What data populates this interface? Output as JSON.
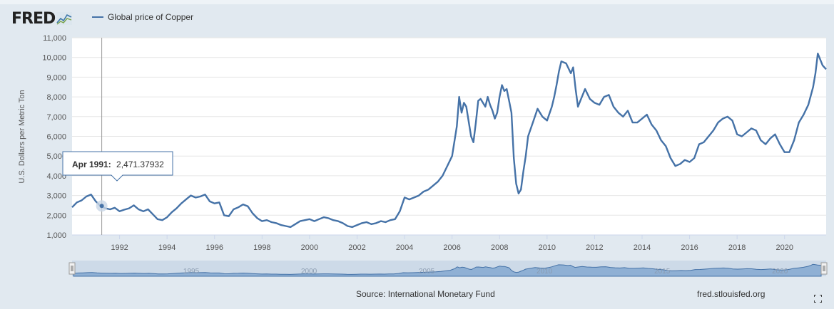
{
  "logo": {
    "text": "FRED",
    "icon": "fred-graph-icon"
  },
  "legend": {
    "series_name": "Global price of Copper",
    "color": "#4572a7"
  },
  "tooltip": {
    "date": "Apr 1991:",
    "value": "2,471.37932"
  },
  "footer": {
    "source": "Source: International Monetary Fund",
    "site": "fred.stlouisfed.org"
  },
  "navigator": {
    "labels": [
      "1995",
      "2000",
      "2005",
      "2010",
      "2015",
      "2020"
    ]
  },
  "colors": {
    "line": "#4572a7",
    "background": "#e1e9f0",
    "plot": "#ffffff"
  },
  "chart_data": {
    "type": "line",
    "ylabel": "U.S. Dollars per Metric Ton",
    "ylim": [
      1000,
      11000
    ],
    "y_ticks": [
      "1,000",
      "2,000",
      "3,000",
      "4,000",
      "5,000",
      "6,000",
      "7,000",
      "8,000",
      "9,000",
      "10,000",
      "11,000"
    ],
    "xlim": [
      1990.0,
      2021.75
    ],
    "x_ticks": [
      "1992",
      "1994",
      "1996",
      "1998",
      "2000",
      "2002",
      "2004",
      "2006",
      "2008",
      "2010",
      "2012",
      "2014",
      "2016",
      "2018",
      "2020"
    ],
    "grid": true,
    "legend_position": "top-left",
    "series": [
      {
        "name": "Global price of Copper",
        "x": [
          1990.0,
          1990.2,
          1990.4,
          1990.6,
          1990.8,
          1991.0,
          1991.2,
          1991.4,
          1991.6,
          1991.8,
          1992.0,
          1992.2,
          1992.4,
          1992.6,
          1992.8,
          1993.0,
          1993.2,
          1993.4,
          1993.6,
          1993.8,
          1994.0,
          1994.2,
          1994.4,
          1994.6,
          1994.8,
          1995.0,
          1995.2,
          1995.4,
          1995.6,
          1995.8,
          1996.0,
          1996.2,
          1996.4,
          1996.6,
          1996.8,
          1997.0,
          1997.2,
          1997.4,
          1997.6,
          1997.8,
          1998.0,
          1998.2,
          1998.4,
          1998.6,
          1998.8,
          1999.0,
          1999.2,
          1999.4,
          1999.6,
          1999.8,
          2000.0,
          2000.2,
          2000.4,
          2000.6,
          2000.8,
          2001.0,
          2001.2,
          2001.4,
          2001.6,
          2001.8,
          2002.0,
          2002.2,
          2002.4,
          2002.6,
          2002.8,
          2003.0,
          2003.2,
          2003.4,
          2003.6,
          2003.8,
          2004.0,
          2004.2,
          2004.4,
          2004.6,
          2004.8,
          2005.0,
          2005.2,
          2005.4,
          2005.6,
          2005.8,
          2006.0,
          2006.2,
          2006.3,
          2006.4,
          2006.5,
          2006.6,
          2006.8,
          2006.9,
          2007.0,
          2007.1,
          2007.2,
          2007.4,
          2007.5,
          2007.6,
          2007.7,
          2007.8,
          2007.9,
          2008.0,
          2008.1,
          2008.2,
          2008.3,
          2008.4,
          2008.5,
          2008.6,
          2008.7,
          2008.8,
          2008.9,
          2009.0,
          2009.1,
          2009.2,
          2009.4,
          2009.6,
          2009.8,
          2010.0,
          2010.2,
          2010.3,
          2010.4,
          2010.5,
          2010.6,
          2010.8,
          2011.0,
          2011.1,
          2011.2,
          2011.3,
          2011.4,
          2011.6,
          2011.8,
          2012.0,
          2012.2,
          2012.4,
          2012.6,
          2012.8,
          2013.0,
          2013.2,
          2013.4,
          2013.6,
          2013.8,
          2014.0,
          2014.2,
          2014.4,
          2014.6,
          2014.8,
          2015.0,
          2015.2,
          2015.4,
          2015.6,
          2015.8,
          2016.0,
          2016.2,
          2016.4,
          2016.6,
          2016.8,
          2017.0,
          2017.2,
          2017.4,
          2017.6,
          2017.8,
          2018.0,
          2018.2,
          2018.4,
          2018.6,
          2018.8,
          2019.0,
          2019.2,
          2019.4,
          2019.6,
          2019.8,
          2020.0,
          2020.2,
          2020.4,
          2020.6,
          2020.8,
          2021.0,
          2021.2,
          2021.3,
          2021.4,
          2021.6,
          2021.75
        ],
        "y": [
          2400,
          2650,
          2750,
          2950,
          3050,
          2700,
          2471,
          2350,
          2300,
          2380,
          2200,
          2280,
          2350,
          2500,
          2300,
          2200,
          2300,
          2050,
          1800,
          1750,
          1900,
          2150,
          2350,
          2600,
          2800,
          3000,
          2900,
          2950,
          3050,
          2700,
          2600,
          2650,
          2000,
          1950,
          2300,
          2400,
          2550,
          2450,
          2100,
          1850,
          1700,
          1750,
          1650,
          1600,
          1500,
          1450,
          1400,
          1550,
          1700,
          1750,
          1800,
          1700,
          1800,
          1900,
          1850,
          1750,
          1700,
          1600,
          1450,
          1400,
          1500,
          1600,
          1650,
          1550,
          1600,
          1700,
          1650,
          1750,
          1800,
          2200,
          2900,
          2800,
          2900,
          3000,
          3200,
          3300,
          3500,
          3700,
          4000,
          4500,
          5000,
          6500,
          8000,
          7200,
          7700,
          7500,
          6000,
          5700,
          6700,
          7800,
          7900,
          7500,
          8000,
          7600,
          7300,
          6900,
          7200,
          8000,
          8600,
          8300,
          8400,
          7800,
          7200,
          4900,
          3600,
          3100,
          3300,
          4200,
          5000,
          6000,
          6700,
          7400,
          7000,
          6800,
          7500,
          8000,
          8600,
          9300,
          9800,
          9700,
          9200,
          9500,
          8400,
          7500,
          7800,
          8400,
          7900,
          7700,
          7600,
          8000,
          8100,
          7500,
          7200,
          7000,
          7300,
          6700,
          6700,
          6900,
          7100,
          6600,
          6300,
          5800,
          5500,
          4900,
          4500,
          4600,
          4800,
          4700,
          4900,
          5600,
          5700,
          6000,
          6300,
          6700,
          6900,
          7000,
          6800,
          6100,
          6000,
          6200,
          6400,
          6300,
          5800,
          5600,
          5900,
          6100,
          5600,
          5200,
          5200,
          5800,
          6700,
          7100,
          7600,
          8500,
          9200,
          10200,
          9600,
          9400
        ]
      }
    ]
  }
}
